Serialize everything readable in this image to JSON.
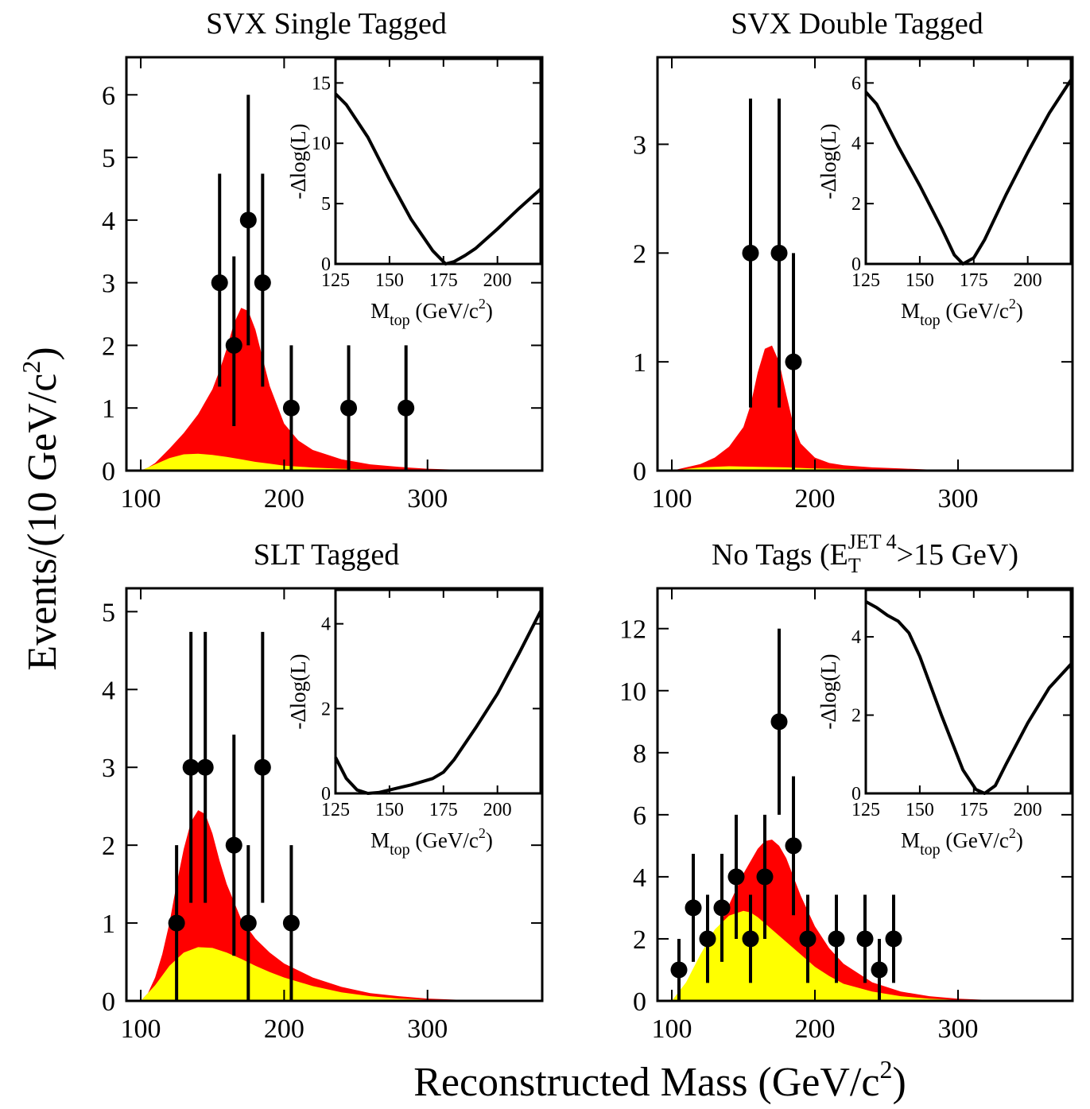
{
  "figure": {
    "ylabel": "Events/(10 GeV/c",
    "ylabel_sup": "2",
    "ylabel_close": ")",
    "xlabel": "Reconstructed Mass (GeV/c",
    "xlabel_sup": "2",
    "xlabel_close": ")"
  },
  "colors": {
    "signal": "#ff0000",
    "background": "#ffff00",
    "data": "#000000"
  },
  "chart_data": [
    {
      "type": "line",
      "title": "SVX Single Tagged",
      "xlim": [
        90,
        380
      ],
      "ylim": [
        0,
        6.6
      ],
      "xticks": [
        100,
        200,
        300
      ],
      "yticks": [
        0,
        1,
        2,
        3,
        4,
        5,
        6
      ],
      "series": [
        {
          "kind": "total",
          "x": [
            100,
            105,
            110,
            120,
            130,
            140,
            150,
            155,
            160,
            165,
            170,
            175,
            180,
            185,
            190,
            200,
            210,
            220,
            240,
            260,
            280,
            300,
            320,
            340,
            380
          ],
          "y": [
            0,
            0.05,
            0.12,
            0.35,
            0.6,
            0.9,
            1.3,
            1.6,
            1.95,
            2.35,
            2.6,
            2.55,
            2.25,
            1.8,
            1.35,
            0.75,
            0.48,
            0.33,
            0.18,
            0.1,
            0.06,
            0.03,
            0.015,
            0.008,
            0
          ]
        },
        {
          "kind": "background",
          "x": [
            100,
            110,
            120,
            130,
            140,
            150,
            160,
            170,
            180,
            190,
            200,
            220,
            240,
            260,
            280,
            300,
            320,
            380
          ],
          "y": [
            0,
            0.1,
            0.2,
            0.26,
            0.27,
            0.25,
            0.22,
            0.18,
            0.14,
            0.11,
            0.08,
            0.05,
            0.03,
            0.02,
            0.01,
            0.005,
            0.002,
            0
          ]
        },
        {
          "kind": "data",
          "x": [
            155,
            165,
            175,
            185,
            205,
            245,
            285
          ],
          "y": [
            3,
            2,
            4,
            3,
            1,
            1,
            1
          ],
          "yerr": [
            [
              1.66,
              1.74
            ],
            [
              1.29,
              1.42
            ],
            [
              2.0,
              2.0
            ],
            [
              1.66,
              1.74
            ],
            [
              1.0,
              1.0
            ],
            [
              1.0,
              1.0
            ],
            [
              1.0,
              1.0
            ]
          ]
        }
      ],
      "inset": {
        "xlabel": "M",
        "xlabel_sub": "top",
        "xlabel_units": " (GeV/c",
        "xlabel_units_sup": "2",
        "xlabel_units_close": ")",
        "ylabel": "-Δlog(L)",
        "xlim": [
          125,
          220
        ],
        "ylim": [
          0,
          17
        ],
        "xticks": [
          125,
          150,
          175,
          200
        ],
        "yticks": [
          0,
          5,
          10,
          15
        ],
        "curve": {
          "x": [
            125,
            130,
            140,
            150,
            160,
            170,
            176,
            180,
            185,
            190,
            200,
            210,
            220
          ],
          "y": [
            14.1,
            13.2,
            10.5,
            7.0,
            3.7,
            1.1,
            0.0,
            0.2,
            0.7,
            1.3,
            2.9,
            4.6,
            6.2
          ]
        }
      }
    },
    {
      "type": "line",
      "title": "SVX Double Tagged",
      "xlim": [
        90,
        380
      ],
      "ylim": [
        0,
        3.8
      ],
      "xticks": [
        100,
        200,
        300
      ],
      "yticks": [
        0,
        1,
        2,
        3
      ],
      "series": [
        {
          "kind": "total",
          "x": [
            100,
            110,
            120,
            130,
            140,
            150,
            155,
            160,
            165,
            170,
            175,
            180,
            185,
            190,
            200,
            210,
            220,
            240,
            260,
            280,
            300,
            340,
            380
          ],
          "y": [
            0,
            0.03,
            0.06,
            0.12,
            0.22,
            0.4,
            0.6,
            0.9,
            1.12,
            1.15,
            1.0,
            0.7,
            0.42,
            0.25,
            0.12,
            0.07,
            0.05,
            0.03,
            0.02,
            0.01,
            0.006,
            0.002,
            0
          ]
        },
        {
          "kind": "background",
          "x": [
            100,
            120,
            140,
            160,
            180,
            200,
            240,
            280,
            380
          ],
          "y": [
            0,
            0.03,
            0.04,
            0.035,
            0.03,
            0.02,
            0.01,
            0.005,
            0
          ]
        },
        {
          "kind": "data",
          "x": [
            155,
            175,
            185
          ],
          "y": [
            2,
            2,
            1
          ],
          "yerr": [
            [
              1.42,
              1.42
            ],
            [
              1.42,
              1.42
            ],
            [
              1.0,
              1.0
            ]
          ]
        }
      ],
      "inset": {
        "xlabel": "M",
        "xlabel_sub": "top",
        "xlabel_units": " (GeV/c",
        "xlabel_units_sup": "2",
        "xlabel_units_close": ")",
        "ylabel": "-Δlog(L)",
        "xlim": [
          125,
          220
        ],
        "ylim": [
          0,
          6.8
        ],
        "xticks": [
          125,
          150,
          175,
          200
        ],
        "yticks": [
          0,
          2,
          4,
          6
        ],
        "curve": {
          "x": [
            125,
            130,
            140,
            150,
            160,
            166,
            170,
            175,
            180,
            190,
            200,
            210,
            220
          ],
          "y": [
            5.7,
            5.3,
            3.9,
            2.6,
            1.2,
            0.3,
            0.0,
            0.2,
            0.8,
            2.3,
            3.7,
            5.0,
            6.1
          ]
        }
      }
    },
    {
      "type": "line",
      "title": "SLT Tagged",
      "xlim": [
        90,
        380
      ],
      "ylim": [
        0,
        5.3
      ],
      "xticks": [
        100,
        200,
        300
      ],
      "yticks": [
        0,
        1,
        2,
        3,
        4,
        5
      ],
      "series": [
        {
          "kind": "total",
          "x": [
            100,
            105,
            110,
            115,
            120,
            125,
            130,
            135,
            140,
            145,
            150,
            155,
            160,
            170,
            180,
            190,
            200,
            220,
            240,
            260,
            280,
            300,
            320,
            340,
            380
          ],
          "y": [
            0,
            0.1,
            0.3,
            0.6,
            1.0,
            1.5,
            1.95,
            2.3,
            2.45,
            2.4,
            2.15,
            1.8,
            1.5,
            1.05,
            0.8,
            0.62,
            0.48,
            0.3,
            0.18,
            0.1,
            0.06,
            0.03,
            0.015,
            0.008,
            0
          ]
        },
        {
          "kind": "background",
          "x": [
            100,
            110,
            120,
            130,
            140,
            150,
            160,
            170,
            180,
            190,
            200,
            220,
            240,
            260,
            280,
            300,
            320,
            380
          ],
          "y": [
            0,
            0.2,
            0.45,
            0.62,
            0.69,
            0.68,
            0.62,
            0.54,
            0.45,
            0.37,
            0.3,
            0.19,
            0.11,
            0.06,
            0.03,
            0.015,
            0.007,
            0
          ]
        },
        {
          "kind": "data",
          "x": [
            125,
            135,
            145,
            165,
            175,
            185,
            205
          ],
          "y": [
            1,
            3,
            3,
            2,
            1,
            3,
            1
          ],
          "yerr": [
            [
              1.0,
              1.0
            ],
            [
              1.74,
              1.74
            ],
            [
              1.74,
              1.74
            ],
            [
              1.42,
              1.42
            ],
            [
              1.0,
              1.0
            ],
            [
              1.74,
              1.74
            ],
            [
              1.0,
              1.0
            ]
          ]
        }
      ],
      "inset": {
        "xlabel": "M",
        "xlabel_sub": "top",
        "xlabel_units": " (GeV/c",
        "xlabel_units_sup": "2",
        "xlabel_units_close": ")",
        "ylabel": "-Δlog(L)",
        "xlim": [
          125,
          220
        ],
        "ylim": [
          0,
          4.8
        ],
        "xticks": [
          125,
          150,
          175,
          200
        ],
        "yticks": [
          0,
          2,
          4
        ],
        "curve": {
          "x": [
            125,
            130,
            135,
            140,
            145,
            150,
            160,
            170,
            175,
            180,
            190,
            200,
            210,
            220
          ],
          "y": [
            0.85,
            0.35,
            0.08,
            0.0,
            0.02,
            0.08,
            0.2,
            0.35,
            0.5,
            0.8,
            1.55,
            2.35,
            3.3,
            4.3
          ]
        }
      }
    },
    {
      "type": "line",
      "title": "No Tags (E",
      "title_sub": "T",
      "title_sup": "JET 4",
      "title_rest": ">15 GeV)",
      "xlim": [
        90,
        380
      ],
      "ylim": [
        0,
        13.3
      ],
      "xticks": [
        100,
        200,
        300
      ],
      "yticks": [
        0,
        2,
        4,
        6,
        8,
        10,
        12
      ],
      "series": [
        {
          "kind": "total",
          "x": [
            100,
            110,
            120,
            130,
            140,
            150,
            160,
            165,
            170,
            175,
            180,
            185,
            190,
            200,
            210,
            220,
            240,
            260,
            280,
            300,
            320,
            340,
            380
          ],
          "y": [
            0,
            0.5,
            1.2,
            2.1,
            3.1,
            4.1,
            4.9,
            5.15,
            5.2,
            5.0,
            4.6,
            4.0,
            3.4,
            2.4,
            1.7,
            1.2,
            0.6,
            0.3,
            0.15,
            0.07,
            0.03,
            0.01,
            0
          ]
        },
        {
          "kind": "background",
          "x": [
            100,
            110,
            120,
            130,
            140,
            150,
            155,
            160,
            170,
            180,
            190,
            200,
            210,
            220,
            240,
            260,
            280,
            300,
            320,
            380
          ],
          "y": [
            0,
            0.6,
            1.5,
            2.3,
            2.75,
            2.9,
            2.85,
            2.7,
            2.3,
            1.9,
            1.5,
            1.1,
            0.8,
            0.55,
            0.3,
            0.15,
            0.07,
            0.03,
            0.01,
            0
          ]
        },
        {
          "kind": "data",
          "x": [
            105,
            115,
            125,
            135,
            145,
            155,
            165,
            175,
            185,
            195,
            215,
            235,
            245,
            255
          ],
          "y": [
            1,
            3,
            2,
            3,
            4,
            2,
            4,
            9,
            5,
            2,
            2,
            2,
            1,
            2
          ],
          "yerr": [
            [
              1.0,
              1.0
            ],
            [
              1.74,
              1.74
            ],
            [
              1.42,
              1.42
            ],
            [
              1.74,
              1.74
            ],
            [
              2.0,
              2.0
            ],
            [
              1.42,
              1.42
            ],
            [
              2.0,
              2.0
            ],
            [
              3.0,
              3.0
            ],
            [
              2.24,
              2.24
            ],
            [
              1.42,
              1.42
            ],
            [
              1.42,
              1.42
            ],
            [
              1.42,
              1.42
            ],
            [
              1.0,
              1.0
            ],
            [
              1.42,
              1.42
            ]
          ]
        }
      ],
      "inset": {
        "xlabel": "M",
        "xlabel_sub": "top",
        "xlabel_units": " (GeV/c",
        "xlabel_units_sup": "2",
        "xlabel_units_close": ")",
        "ylabel": "-Δlog(L)",
        "xlim": [
          125,
          220
        ],
        "ylim": [
          0,
          5.2
        ],
        "xticks": [
          125,
          150,
          175,
          200
        ],
        "yticks": [
          0,
          2,
          4
        ],
        "curve": {
          "x": [
            125,
            130,
            135,
            140,
            145,
            150,
            160,
            170,
            176,
            180,
            185,
            190,
            200,
            210,
            220
          ],
          "y": [
            4.9,
            4.75,
            4.55,
            4.4,
            4.1,
            3.5,
            2.0,
            0.6,
            0.1,
            0.0,
            0.2,
            0.75,
            1.8,
            2.7,
            3.3
          ]
        }
      }
    }
  ]
}
